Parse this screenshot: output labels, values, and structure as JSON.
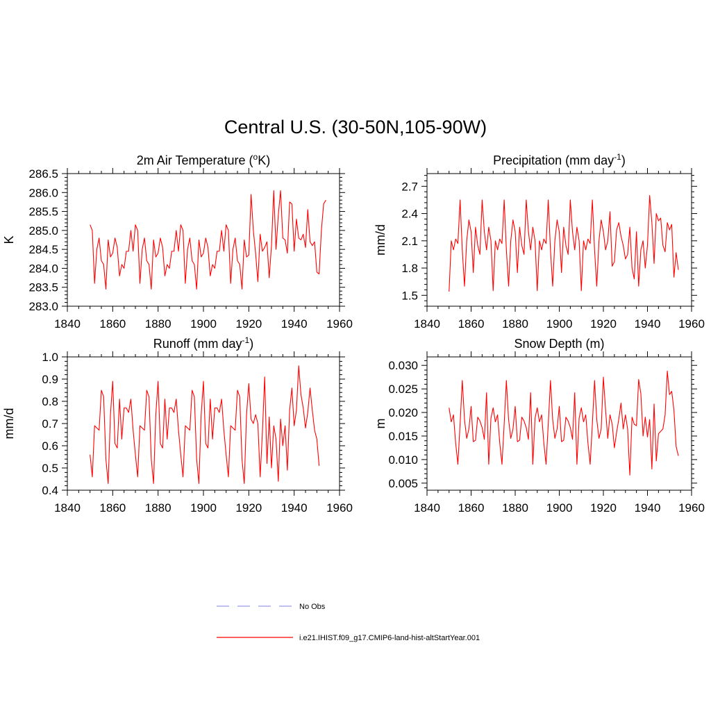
{
  "title": "Central U.S. (30-50N,105-90W)",
  "legend": {
    "items": [
      {
        "label": "No Obs",
        "color": "#9a9ae6",
        "style": "dashed"
      },
      {
        "label": "i.e21.IHIST.f09_g17.CMIP6-land-hist-altStartYear.001",
        "color": "#ff0000",
        "style": "solid"
      }
    ]
  },
  "chart_data": [
    {
      "type": "line",
      "title": "2m Air Temperature (",
      "title_super": "o",
      "title_after": "K)",
      "ylabel": "K",
      "xlim": [
        1840,
        1960
      ],
      "ylim": [
        283.0,
        286.5
      ],
      "xticks": [
        1840,
        1860,
        1880,
        1900,
        1920,
        1940,
        1960
      ],
      "yticks": [
        283.0,
        283.5,
        284.0,
        284.5,
        285.0,
        285.5,
        286.0,
        286.5
      ],
      "ytick_labels": [
        "283.0",
        "283.5",
        "284.0",
        "284.5",
        "285.0",
        "285.5",
        "286.0",
        "286.5"
      ],
      "color": "#ff0000",
      "x_start": 1850,
      "values": [
        285.15,
        285.0,
        283.6,
        284.5,
        284.8,
        284.2,
        284.1,
        283.45,
        284.75,
        284.3,
        284.4,
        284.8,
        284.55,
        283.8,
        284.1,
        284.0,
        284.45,
        284.45,
        285.0,
        284.45,
        285.15,
        285.0,
        283.6,
        284.5,
        284.8,
        284.2,
        284.1,
        283.45,
        284.75,
        284.3,
        284.4,
        284.8,
        284.55,
        283.8,
        284.1,
        284.0,
        284.45,
        284.45,
        285.0,
        284.45,
        285.15,
        285.0,
        283.6,
        284.5,
        284.8,
        284.2,
        284.1,
        283.45,
        284.75,
        284.3,
        284.4,
        284.8,
        284.55,
        283.8,
        284.1,
        284.0,
        284.45,
        284.45,
        285.0,
        284.45,
        285.15,
        285.0,
        283.6,
        284.5,
        284.8,
        284.2,
        284.1,
        283.45,
        284.75,
        284.3,
        284.35,
        285.95,
        285.0,
        284.4,
        283.65,
        284.9,
        284.45,
        284.55,
        284.7,
        283.75,
        284.6,
        286.05,
        284.5,
        285.4,
        286.05,
        284.8,
        284.75,
        284.4,
        285.75,
        285.7,
        284.45,
        285.3,
        284.8,
        284.75,
        284.9,
        284.55,
        285.55,
        284.7,
        284.6,
        284.7,
        283.9,
        283.85,
        285.0,
        285.7,
        285.8
      ]
    },
    {
      "type": "line",
      "title": "Precipitation (mm day",
      "title_super": "-1",
      "title_after": ")",
      "ylabel": "mm/d",
      "xlim": [
        1840,
        1960
      ],
      "ylim": [
        1.38,
        2.84
      ],
      "xticks": [
        1840,
        1860,
        1880,
        1900,
        1920,
        1940,
        1960
      ],
      "yticks": [
        1.5,
        1.8,
        2.1,
        2.4,
        2.7
      ],
      "ytick_labels": [
        "1.5",
        "1.8",
        "2.1",
        "2.4",
        "2.7"
      ],
      "color": "#ff0000",
      "x_start": 1850,
      "values": [
        1.54,
        2.1,
        2.0,
        2.12,
        2.07,
        2.55,
        2.0,
        1.6,
        2.1,
        2.33,
        2.2,
        1.75,
        2.25,
        2.05,
        1.95,
        2.55,
        2.2,
        2.0,
        2.25,
        2.1,
        1.55,
        2.1,
        2.0,
        2.12,
        2.07,
        2.55,
        2.0,
        1.6,
        2.1,
        2.33,
        2.2,
        1.75,
        2.25,
        2.05,
        1.95,
        2.55,
        2.2,
        2.0,
        2.25,
        2.1,
        1.55,
        2.1,
        2.0,
        2.12,
        2.07,
        2.55,
        2.0,
        1.6,
        2.1,
        2.33,
        2.2,
        1.75,
        2.25,
        2.05,
        1.95,
        2.55,
        2.2,
        2.0,
        2.25,
        2.1,
        1.55,
        2.1,
        2.0,
        2.12,
        2.07,
        2.55,
        2.0,
        1.6,
        2.1,
        2.33,
        2.2,
        2.0,
        2.1,
        2.42,
        1.82,
        1.87,
        2.22,
        2.3,
        2.15,
        2.05,
        1.9,
        1.95,
        2.25,
        1.8,
        1.68,
        2.2,
        1.6,
        2.0,
        2.1,
        1.8,
        2.05,
        2.6,
        2.3,
        1.85,
        2.4,
        2.32,
        2.35,
        2.05,
        1.98,
        2.3,
        2.22,
        2.28,
        1.7,
        1.97,
        1.78
      ]
    },
    {
      "type": "line",
      "title": "Runoff (mm day",
      "title_super": "-1",
      "title_after": ")",
      "ylabel": "mm/d",
      "xlim": [
        1840,
        1960
      ],
      "ylim": [
        0.4,
        1.0
      ],
      "xticks": [
        1840,
        1860,
        1880,
        1900,
        1920,
        1940,
        1960
      ],
      "yticks": [
        0.4,
        0.5,
        0.6,
        0.7,
        0.8,
        0.9,
        1.0
      ],
      "ytick_labels": [
        "0.4",
        "0.5",
        "0.6",
        "0.7",
        "0.8",
        "0.9",
        "1.0"
      ],
      "color": "#ff0000",
      "x_start": 1850,
      "values": [
        0.56,
        0.46,
        0.69,
        0.68,
        0.67,
        0.85,
        0.82,
        0.54,
        0.43,
        0.74,
        0.89,
        0.61,
        0.59,
        0.81,
        0.63,
        0.77,
        0.77,
        0.75,
        0.81,
        0.67,
        0.56,
        0.46,
        0.69,
        0.68,
        0.67,
        0.85,
        0.82,
        0.54,
        0.43,
        0.74,
        0.89,
        0.61,
        0.59,
        0.81,
        0.63,
        0.77,
        0.77,
        0.75,
        0.81,
        0.67,
        0.56,
        0.46,
        0.69,
        0.68,
        0.67,
        0.85,
        0.82,
        0.54,
        0.43,
        0.74,
        0.89,
        0.61,
        0.59,
        0.81,
        0.63,
        0.77,
        0.77,
        0.75,
        0.81,
        0.67,
        0.56,
        0.46,
        0.69,
        0.68,
        0.67,
        0.85,
        0.82,
        0.54,
        0.43,
        0.74,
        0.88,
        0.72,
        0.7,
        0.74,
        0.7,
        0.46,
        0.66,
        0.91,
        0.52,
        0.73,
        0.5,
        0.69,
        0.63,
        0.44,
        0.72,
        0.6,
        0.69,
        0.49,
        0.76,
        0.86,
        0.69,
        0.76,
        0.96,
        0.83,
        0.77,
        0.68,
        0.75,
        0.86,
        0.76,
        0.67,
        0.63,
        0.51
      ]
    },
    {
      "type": "line",
      "title": "Snow Depth (m)",
      "title_super": "",
      "title_after": "",
      "ylabel": "m",
      "xlim": [
        1840,
        1960
      ],
      "ylim": [
        0.0035,
        0.0318
      ],
      "xticks": [
        1840,
        1860,
        1880,
        1900,
        1920,
        1940,
        1960
      ],
      "yticks": [
        0.005,
        0.01,
        0.015,
        0.02,
        0.025,
        0.03
      ],
      "ytick_labels": [
        "0.005",
        "0.010",
        "0.015",
        "0.020",
        "0.025",
        "0.030"
      ],
      "color": "#ff0000",
      "x_start": 1850,
      "values": [
        0.021,
        0.018,
        0.0195,
        0.0135,
        0.009,
        0.0175,
        0.0268,
        0.0185,
        0.0145,
        0.0165,
        0.0213,
        0.0138,
        0.0141,
        0.019,
        0.0182,
        0.0168,
        0.0143,
        0.0242,
        0.009,
        0.0188,
        0.021,
        0.018,
        0.0195,
        0.0135,
        0.009,
        0.0175,
        0.0268,
        0.0185,
        0.0145,
        0.0165,
        0.0213,
        0.0138,
        0.0141,
        0.019,
        0.0182,
        0.0168,
        0.0143,
        0.0242,
        0.009,
        0.0188,
        0.021,
        0.018,
        0.0195,
        0.0135,
        0.009,
        0.0175,
        0.0268,
        0.0185,
        0.0145,
        0.0165,
        0.0213,
        0.0138,
        0.0141,
        0.019,
        0.0182,
        0.0168,
        0.0143,
        0.0242,
        0.009,
        0.0188,
        0.021,
        0.018,
        0.0195,
        0.0135,
        0.009,
        0.0175,
        0.0268,
        0.0185,
        0.0145,
        0.0165,
        0.0275,
        0.0205,
        0.0145,
        0.0195,
        0.0175,
        0.0125,
        0.0158,
        0.0186,
        0.022,
        0.0165,
        0.0195,
        0.0165,
        0.0067,
        0.019,
        0.0175,
        0.0172,
        0.027,
        0.024,
        0.015,
        0.019,
        0.0148,
        0.0185,
        0.008,
        0.0218,
        0.0097,
        0.0155,
        0.016,
        0.0165,
        0.0195,
        0.0288,
        0.0238,
        0.0245,
        0.0205,
        0.0128,
        0.0108
      ]
    }
  ]
}
